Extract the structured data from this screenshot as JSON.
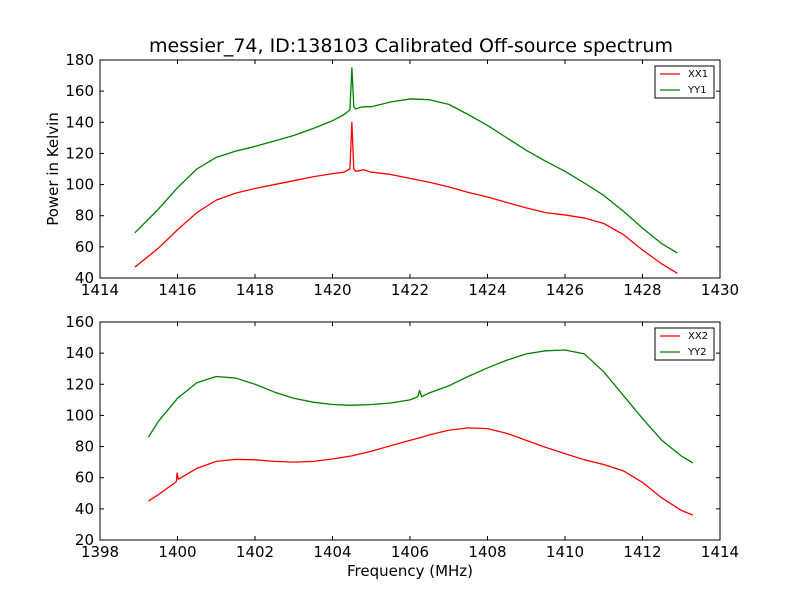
{
  "chart_data": [
    {
      "type": "line",
      "title": "messier_74, ID:138103 Calibrated Off-source spectrum",
      "xlabel": "",
      "ylabel": "Power in Kelvin",
      "xlim": [
        1414,
        1430
      ],
      "ylim": [
        40,
        180
      ],
      "xticks": [
        1414,
        1416,
        1418,
        1420,
        1422,
        1424,
        1426,
        1428,
        1430
      ],
      "yticks": [
        40,
        60,
        80,
        100,
        120,
        140,
        160,
        180
      ],
      "legend_position": "top-right",
      "series": [
        {
          "name": "XX1",
          "color": "#ff0000",
          "x": [
            1414.9,
            1415.5,
            1416.0,
            1416.5,
            1417.0,
            1417.5,
            1418.0,
            1418.5,
            1419.0,
            1419.5,
            1420.0,
            1420.3,
            1420.45,
            1420.5,
            1420.55,
            1420.6,
            1420.7,
            1420.8,
            1421.0,
            1421.5,
            1422.0,
            1422.5,
            1423.0,
            1423.5,
            1424.0,
            1424.5,
            1425.0,
            1425.5,
            1426.0,
            1426.5,
            1427.0,
            1427.5,
            1428.0,
            1428.5,
            1428.9
          ],
          "y": [
            47,
            59,
            71,
            82,
            90,
            94.5,
            97.5,
            100,
            102.5,
            105,
            107,
            108,
            110,
            140,
            110,
            108.5,
            109,
            109.5,
            108,
            106.5,
            104,
            101.5,
            98.5,
            95,
            92,
            88.5,
            85,
            82,
            80.5,
            78.5,
            75,
            68,
            58,
            49,
            43
          ]
        },
        {
          "name": "YY1",
          "color": "#008000",
          "x": [
            1414.9,
            1415.5,
            1416.0,
            1416.5,
            1417.0,
            1417.5,
            1418.0,
            1418.5,
            1419.0,
            1419.5,
            1420.0,
            1420.3,
            1420.45,
            1420.5,
            1420.55,
            1420.6,
            1420.7,
            1420.8,
            1421.0,
            1421.5,
            1422.0,
            1422.5,
            1423.0,
            1423.5,
            1424.0,
            1424.5,
            1425.0,
            1425.5,
            1426.0,
            1426.5,
            1427.0,
            1427.5,
            1428.0,
            1428.5,
            1428.9
          ],
          "y": [
            69,
            84,
            98,
            110,
            117.5,
            121.5,
            124.5,
            128,
            131.5,
            136,
            141,
            145,
            148,
            175,
            150,
            148.5,
            149.5,
            150,
            150,
            153,
            155,
            154.5,
            151.5,
            145,
            138,
            130,
            122,
            115,
            108.5,
            101,
            93,
            83,
            72,
            62,
            56
          ]
        }
      ]
    },
    {
      "type": "line",
      "title": "",
      "xlabel": "Frequency (MHz)",
      "ylabel": "",
      "xlim": [
        1398,
        1414
      ],
      "ylim": [
        20,
        160
      ],
      "xticks": [
        1398,
        1400,
        1402,
        1404,
        1406,
        1408,
        1410,
        1412,
        1414
      ],
      "yticks": [
        20,
        40,
        60,
        80,
        100,
        120,
        140,
        160
      ],
      "legend_position": "top-right",
      "series": [
        {
          "name": "XX2",
          "color": "#ff0000",
          "x": [
            1399.25,
            1399.5,
            1399.97,
            1399.99,
            1400.02,
            1400.5,
            1401.0,
            1401.5,
            1402.0,
            1402.5,
            1403.0,
            1403.5,
            1404.0,
            1404.5,
            1405.0,
            1405.5,
            1406.0,
            1406.3,
            1406.5,
            1407.0,
            1407.5,
            1408.0,
            1408.5,
            1409.0,
            1409.5,
            1410.0,
            1410.5,
            1411.0,
            1411.5,
            1412.0,
            1412.5,
            1413.0,
            1413.3
          ],
          "y": [
            45,
            49,
            57.5,
            63,
            59,
            66,
            70.5,
            71.8,
            71.5,
            70.5,
            70,
            70.5,
            72,
            74,
            77,
            80.5,
            84,
            86,
            87.5,
            90.5,
            92,
            91.5,
            88.5,
            84,
            79.5,
            75.5,
            71.5,
            68.5,
            64.5,
            57,
            47,
            39,
            36
          ]
        },
        {
          "name": "YY2",
          "color": "#008000",
          "x": [
            1399.25,
            1399.5,
            1400.0,
            1400.5,
            1401.0,
            1401.5,
            1402.0,
            1402.5,
            1403.0,
            1403.5,
            1404.0,
            1404.5,
            1405.0,
            1405.5,
            1406.0,
            1406.2,
            1406.25,
            1406.3,
            1406.5,
            1407.0,
            1407.5,
            1408.0,
            1408.5,
            1409.0,
            1409.5,
            1410.0,
            1410.5,
            1411.0,
            1411.5,
            1412.0,
            1412.5,
            1413.0,
            1413.3
          ],
          "y": [
            86,
            96,
            111,
            121,
            125,
            124,
            120,
            115,
            111,
            108.5,
            107,
            106.5,
            107,
            108,
            110,
            112,
            116,
            112,
            114.5,
            119,
            125,
            130.5,
            135.5,
            139.5,
            141.5,
            142,
            139.5,
            128,
            113,
            98,
            84,
            74,
            69.5
          ]
        }
      ]
    }
  ]
}
